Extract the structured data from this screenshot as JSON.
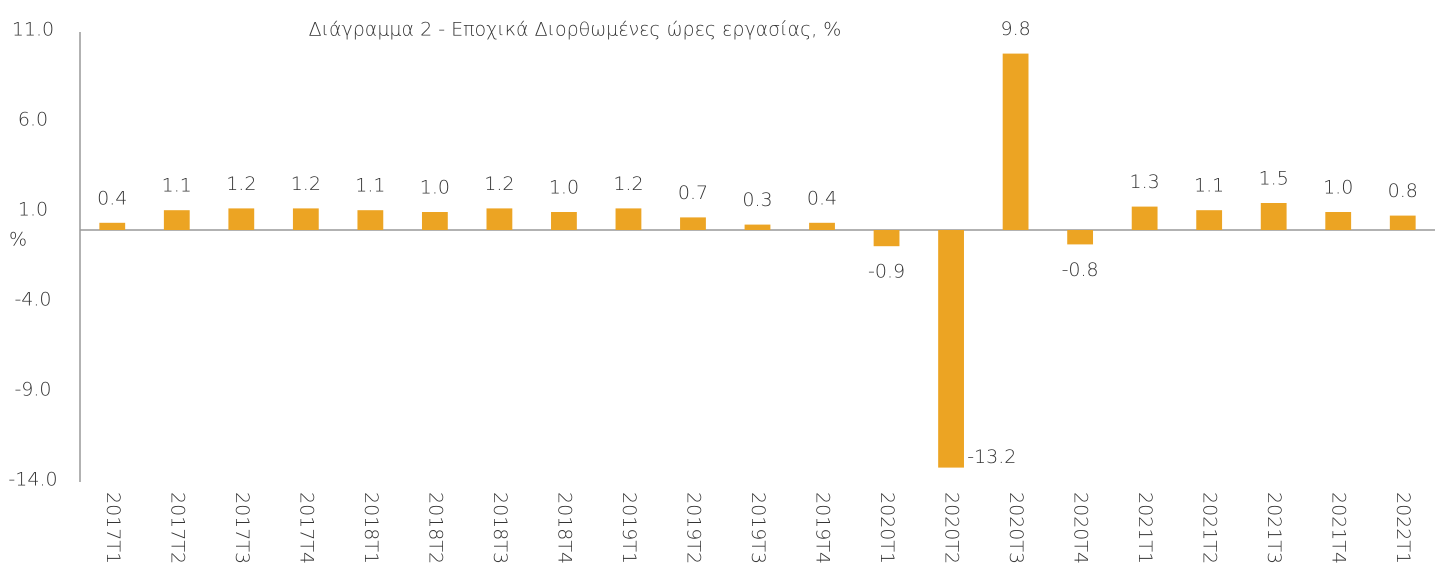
{
  "chart_data": {
    "type": "bar",
    "title": "Διάγραμμα 2 - Εποχικά Διορθωμένες ώρες εργασίας, %",
    "y_label": "%",
    "categories": [
      "2017T1",
      "2017T2",
      "2017T3",
      "2017T4",
      "2018T1",
      "2018T2",
      "2018T3",
      "2018T4",
      "2019T1",
      "2019T2",
      "2019T3",
      "2019T4",
      "2020T1",
      "2020T2",
      "2020T3",
      "2020T4",
      "2021T1",
      "2021T2",
      "2021T3",
      "2021T4",
      "2022T1"
    ],
    "values": [
      0.4,
      1.1,
      1.2,
      1.2,
      1.1,
      1.0,
      1.2,
      1.0,
      1.2,
      0.7,
      0.3,
      0.4,
      -0.9,
      -13.2,
      9.8,
      -0.8,
      1.3,
      1.1,
      1.5,
      1.0,
      0.8
    ],
    "value_labels": [
      "0.4",
      "1.1",
      "1.2",
      "1.2",
      "1.1",
      "1.0",
      "1.2",
      "1.0",
      "1.2",
      "0.7",
      "0.3",
      "0.4",
      "-0.9",
      "-13.2",
      "9.8",
      "-0.8",
      "1.3",
      "1.1",
      "1.5",
      "1.0",
      "0.8"
    ],
    "color": "#eca423",
    "ylim": [
      -14,
      11
    ],
    "yticks": [
      {
        "value": 11,
        "label": "11.0"
      },
      {
        "value": 6,
        "label": "6.0"
      },
      {
        "value": 1,
        "label": "1.0"
      },
      {
        "value": -4,
        "label": "-4.0"
      },
      {
        "value": -9,
        "label": "-9.0"
      },
      {
        "value": -14,
        "label": "-14.0"
      }
    ],
    "grid": false
  }
}
